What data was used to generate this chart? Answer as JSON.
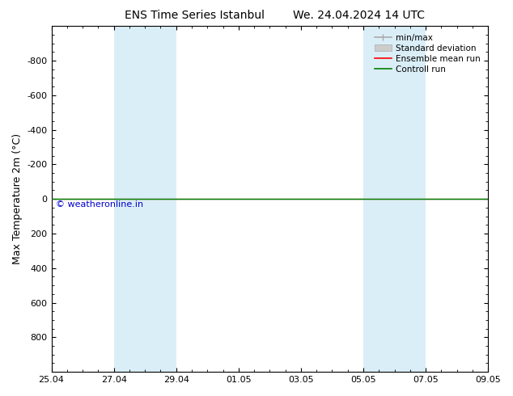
{
  "title_left": "ENS Time Series Istanbul",
  "title_right": "We. 24.04.2024 14 UTC",
  "ylabel": "Max Temperature 2m (°C)",
  "ylim": [
    -1000,
    1000
  ],
  "ylim_display": [
    1000,
    -1000
  ],
  "yticks": [
    -800,
    -600,
    -400,
    -200,
    0,
    200,
    400,
    600,
    800
  ],
  "xtick_labels": [
    "25.04",
    "27.04",
    "29.04",
    "01.05",
    "03.05",
    "05.05",
    "07.05",
    "09.05"
  ],
  "xtick_positions": [
    0,
    2,
    4,
    6,
    8,
    10,
    12,
    14
  ],
  "xlim": [
    0,
    14
  ],
  "blue_bands": [
    {
      "start": 2,
      "end": 4
    },
    {
      "start": 10,
      "end": 12
    }
  ],
  "line_y": 0,
  "copyright_text": "© weatheronline.in",
  "copyright_color": "#0000cc",
  "background_color": "#ffffff",
  "plot_bg_color": "#ffffff",
  "blue_band_color": "#daeef7",
  "ensemble_mean_color": "#ff0000",
  "control_run_color": "#008000",
  "minmax_color": "#aaaaaa",
  "std_dev_color": "#cccccc",
  "title_fontsize": 10,
  "axis_label_fontsize": 9,
  "tick_fontsize": 8,
  "legend_fontsize": 7.5
}
